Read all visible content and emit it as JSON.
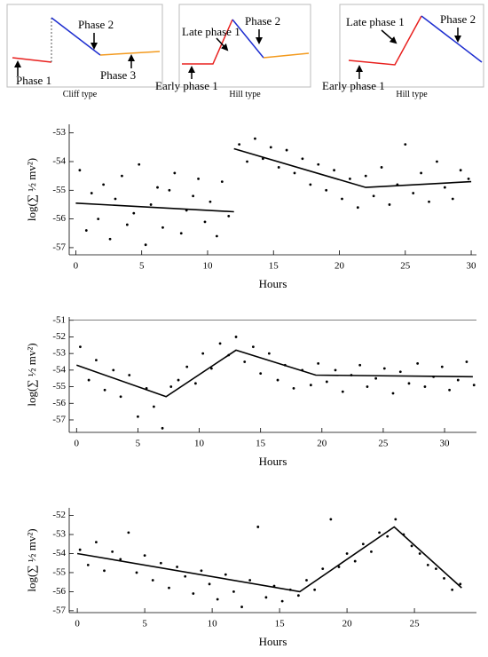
{
  "schematics": [
    {
      "labels": [
        "Phase 1",
        "Phase 2",
        "Phase 3"
      ],
      "caption": "Cliff type"
    },
    {
      "labels": [
        "Late phase 1",
        "Phase 2",
        "Early phase 1"
      ],
      "caption": "Hill type"
    },
    {
      "labels": [
        "Late phase 1",
        "Phase 2",
        "Early phase 1"
      ],
      "caption": "Hill type"
    }
  ],
  "chart_data": [
    {
      "type": "scatter",
      "xlabel": "Hours",
      "ylabel": "log(∑ ½ mv²)",
      "xlim": [
        -0.5,
        30.4
      ],
      "xticks": [
        0,
        5,
        10,
        15,
        20,
        25,
        30
      ],
      "ylim": [
        -57.25,
        -52.7
      ],
      "yticks": [
        -57,
        -56,
        -55,
        -54,
        -53
      ],
      "series": [
        {
          "type": "scatter",
          "color": "#000000",
          "x": [
            0.3,
            0.8,
            1.2,
            1.7,
            2.1,
            2.6,
            3.0,
            3.5,
            3.9,
            4.4,
            4.8,
            5.3,
            5.7,
            6.2,
            6.6,
            7.1,
            7.5,
            8.0,
            8.4,
            8.9,
            9.3,
            9.8,
            10.2,
            10.7,
            11.1,
            11.6,
            12.4,
            13.0,
            13.6,
            14.2,
            14.8,
            15.4,
            16.0,
            16.6,
            17.2,
            17.8,
            18.4,
            19.0,
            19.6,
            20.2,
            20.8,
            21.4,
            22.0,
            22.6,
            23.2,
            23.8,
            24.4,
            25.0,
            25.6,
            26.2,
            26.8,
            27.4,
            28.0,
            28.6,
            29.2,
            29.8
          ],
          "values": [
            -54.3,
            -56.4,
            -55.1,
            -56.0,
            -54.8,
            -56.7,
            -55.3,
            -54.5,
            -56.2,
            -55.8,
            -54.1,
            -56.9,
            -55.5,
            -54.9,
            -56.3,
            -55.0,
            -54.4,
            -56.5,
            -55.7,
            -55.2,
            -54.6,
            -56.1,
            -55.4,
            -56.6,
            -54.7,
            -55.9,
            -53.4,
            -54.0,
            -53.2,
            -53.9,
            -53.5,
            -54.2,
            -53.6,
            -54.4,
            -53.9,
            -54.8,
            -54.1,
            -55.0,
            -54.3,
            -55.3,
            -54.6,
            -55.6,
            -54.5,
            -55.2,
            -54.2,
            -55.5,
            -54.8,
            -53.4,
            -55.1,
            -54.4,
            -55.4,
            -54.0,
            -54.9,
            -55.3,
            -54.3,
            -54.6
          ]
        },
        {
          "type": "line",
          "color": "#000000",
          "x": [
            0,
            12,
            12,
            12,
            22,
            30
          ],
          "values": [
            -55.45,
            -55.75,
            null,
            -53.55,
            -54.9,
            -54.7
          ]
        }
      ]
    },
    {
      "type": "scatter",
      "xlabel": "Hours",
      "ylabel": "log(∑ ½ mv²)",
      "xlim": [
        -0.6,
        32.6
      ],
      "xticks": [
        0,
        5,
        10,
        15,
        20,
        25,
        30
      ],
      "ylim": [
        -57.75,
        -50.8
      ],
      "yticks": [
        -57,
        -56,
        -55,
        -54,
        -53,
        -52,
        -51
      ],
      "hline": -51,
      "series": [
        {
          "type": "scatter",
          "color": "#000000",
          "x": [
            0.3,
            1.0,
            1.6,
            2.3,
            3.0,
            3.6,
            4.3,
            5.0,
            5.7,
            6.3,
            7.0,
            7.7,
            8.3,
            9.0,
            9.7,
            10.3,
            11.0,
            11.7,
            12.4,
            13.0,
            13.7,
            14.4,
            15.0,
            15.7,
            16.4,
            17.0,
            17.7,
            18.4,
            19.1,
            19.7,
            20.4,
            21.1,
            21.7,
            22.4,
            23.1,
            23.7,
            24.4,
            25.1,
            25.8,
            26.4,
            27.1,
            27.8,
            28.4,
            29.1,
            29.8,
            30.4,
            31.1,
            31.8,
            32.4
          ],
          "values": [
            -52.6,
            -54.6,
            -53.4,
            -55.2,
            -54.0,
            -55.6,
            -54.3,
            -56.8,
            -55.1,
            -56.2,
            -57.5,
            -55.0,
            -54.6,
            -53.8,
            -54.8,
            -53.0,
            -53.9,
            -52.4,
            -53.1,
            -52.0,
            -53.5,
            -52.6,
            -54.2,
            -53.0,
            -54.6,
            -53.7,
            -55.1,
            -54.0,
            -54.9,
            -53.6,
            -54.7,
            -54.0,
            -55.3,
            -54.3,
            -53.7,
            -55.0,
            -54.5,
            -53.9,
            -55.4,
            -54.1,
            -54.8,
            -53.6,
            -55.0,
            -54.4,
            -53.8,
            -55.2,
            -54.6,
            -53.5,
            -54.9
          ]
        },
        {
          "type": "line",
          "color": "#000000",
          "x": [
            0,
            7.3,
            13,
            19.5,
            32.3
          ],
          "values": [
            -53.7,
            -55.6,
            -52.8,
            -54.3,
            -54.4
          ]
        }
      ]
    },
    {
      "type": "scatter",
      "xlabel": "Hours",
      "ylabel": "log(∑ ½ mv²)",
      "xlim": [
        -0.6,
        29.6
      ],
      "xticks": [
        0,
        5,
        10,
        15,
        20,
        25
      ],
      "ylim": [
        -57.1,
        -51.6
      ],
      "yticks": [
        -57,
        -56,
        -55,
        -54,
        -53,
        -52
      ],
      "series": [
        {
          "type": "scatter",
          "color": "#000000",
          "x": [
            0.2,
            0.8,
            1.4,
            2.0,
            2.6,
            3.2,
            3.8,
            4.4,
            5.0,
            5.6,
            6.2,
            6.8,
            7.4,
            8.0,
            8.6,
            9.2,
            9.8,
            10.4,
            11.0,
            11.6,
            12.2,
            12.8,
            13.4,
            14.0,
            14.6,
            15.2,
            15.8,
            16.4,
            17.0,
            17.6,
            18.2,
            18.8,
            19.4,
            20.0,
            20.6,
            21.2,
            21.8,
            22.4,
            23.0,
            23.6,
            24.2,
            24.8,
            25.4,
            26.0,
            26.6,
            27.2,
            27.8,
            28.4
          ],
          "values": [
            -53.8,
            -54.6,
            -53.4,
            -54.9,
            -53.9,
            -54.3,
            -52.9,
            -55.0,
            -54.1,
            -55.4,
            -54.5,
            -55.8,
            -54.7,
            -55.2,
            -56.1,
            -54.9,
            -55.6,
            -56.4,
            -55.1,
            -56.0,
            -56.8,
            -55.4,
            -52.6,
            -56.3,
            -55.7,
            -56.5,
            -55.9,
            -56.2,
            -55.4,
            -55.9,
            -54.8,
            -52.2,
            -54.7,
            -54.0,
            -54.4,
            -53.5,
            -53.9,
            -52.9,
            -53.1,
            -52.2,
            -53.0,
            -53.6,
            -54.0,
            -54.6,
            -54.8,
            -55.3,
            -55.9,
            -55.6
          ]
        },
        {
          "type": "line",
          "color": "#000000",
          "x": [
            0,
            16.5,
            23.5,
            28.5
          ],
          "values": [
            -54.0,
            -56.0,
            -52.6,
            -55.8
          ]
        }
      ]
    }
  ]
}
